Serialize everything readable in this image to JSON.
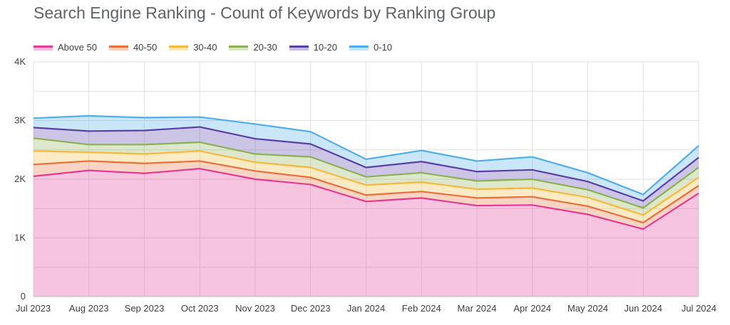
{
  "chart_data": {
    "type": "area",
    "stacked": true,
    "title": "Search Engine Ranking - Count of Keywords by Ranking Group",
    "xlabel": "",
    "ylabel": "",
    "ylim": [
      0,
      4000
    ],
    "yticks": [
      0,
      1000,
      2000,
      3000,
      4000
    ],
    "ytick_labels": [
      "0",
      "1K",
      "2K",
      "3K",
      "4K"
    ],
    "grid": true,
    "legend_position": "top-left",
    "categories": [
      "Jul 2023",
      "Aug 2023",
      "Sep 2023",
      "Oct 2023",
      "Nov 2023",
      "Dec 2023",
      "Jan 2024",
      "Feb 2024",
      "Mar 2024",
      "Apr 2024",
      "May 2024",
      "Jun 2024",
      "Jul 2024"
    ],
    "series": [
      {
        "name": "Above 50",
        "color": "#e33b95",
        "values": [
          2050,
          2150,
          2100,
          2180,
          2000,
          1910,
          1620,
          1680,
          1550,
          1560,
          1400,
          1150,
          1760
        ]
      },
      {
        "name": "40-50",
        "color": "#e8703a",
        "values": [
          200,
          160,
          170,
          130,
          140,
          120,
          110,
          110,
          130,
          140,
          140,
          110,
          130
        ]
      },
      {
        "name": "30-40",
        "color": "#f6b93b",
        "values": [
          230,
          150,
          160,
          170,
          150,
          170,
          170,
          160,
          150,
          150,
          150,
          130,
          140
        ]
      },
      {
        "name": "20-30",
        "color": "#8bb153",
        "values": [
          220,
          130,
          160,
          150,
          140,
          180,
          140,
          160,
          140,
          150,
          130,
          120,
          170
        ]
      },
      {
        "name": "10-20",
        "color": "#5b3fa8",
        "values": [
          180,
          230,
          240,
          260,
          260,
          220,
          160,
          190,
          160,
          160,
          140,
          120,
          170
        ]
      },
      {
        "name": "0-10",
        "color": "#4fadea",
        "values": [
          160,
          260,
          220,
          170,
          250,
          210,
          140,
          190,
          180,
          220,
          150,
          110,
          200
        ]
      }
    ]
  }
}
